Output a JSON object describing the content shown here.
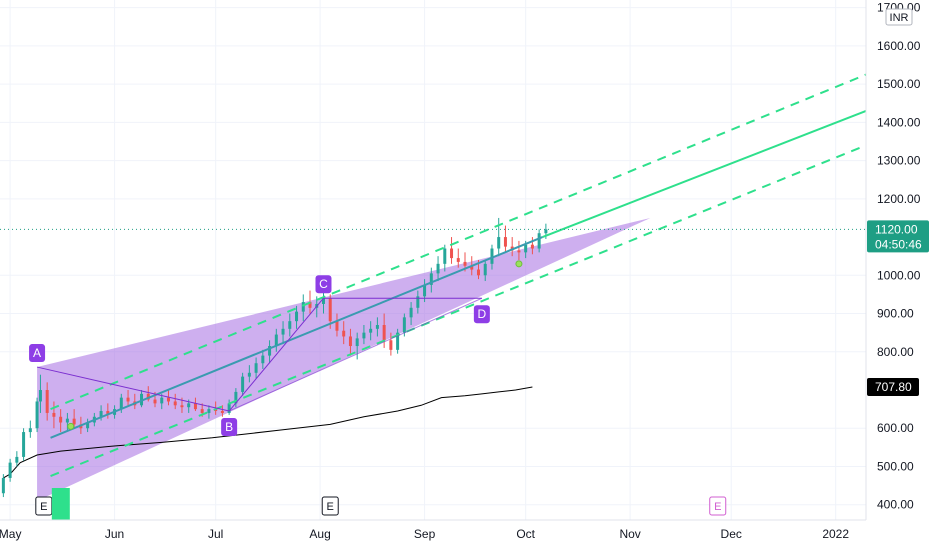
{
  "chart_data": {
    "type": "candlestick",
    "currency": "INR",
    "y_range": [
      360,
      1720
    ],
    "y_ticks": [
      "1700.00",
      "1600.00",
      "1500.00",
      "1400.00",
      "1300.00",
      "1200.00",
      "1000.00",
      "900.00",
      "800.00",
      "600.00",
      "500.00",
      "400.00"
    ],
    "x_months": [
      {
        "label": "May",
        "t": 0
      },
      {
        "label": "Jun",
        "t": 31
      },
      {
        "label": "Jul",
        "t": 61
      },
      {
        "label": "Aug",
        "t": 92
      },
      {
        "label": "Sep",
        "t": 123
      },
      {
        "label": "Oct",
        "t": 153
      },
      {
        "label": "Nov",
        "t": 184
      },
      {
        "label": "Dec",
        "t": 214
      },
      {
        "label": "2022",
        "t": 245
      }
    ],
    "t_range": [
      -3,
      254
    ],
    "last_price": {
      "value": 1120,
      "label": "1120.00",
      "countdown": "04:50:46"
    },
    "ma_price": {
      "value": 707.8,
      "label": "707.80"
    },
    "moving_average": [
      [
        -2,
        470
      ],
      [
        0,
        480
      ],
      [
        3,
        510
      ],
      [
        8,
        530
      ],
      [
        15,
        540
      ],
      [
        30,
        553
      ],
      [
        45,
        563
      ],
      [
        60,
        575
      ],
      [
        70,
        585
      ],
      [
        80,
        595
      ],
      [
        95,
        610
      ],
      [
        105,
        630
      ],
      [
        115,
        645
      ],
      [
        122,
        660
      ],
      [
        128,
        680
      ],
      [
        135,
        685
      ],
      [
        140,
        690
      ],
      [
        145,
        695
      ],
      [
        150,
        700
      ],
      [
        155,
        707.8
      ]
    ],
    "pattern_points": [
      {
        "label": "A",
        "t": 8,
        "price": 760
      },
      {
        "label": "B",
        "t": 65,
        "price": 645
      },
      {
        "label": "C",
        "t": 93,
        "price": 940
      },
      {
        "label": "D",
        "t": 140,
        "price": 940
      }
    ],
    "pattern_triangle": [
      [
        8,
        760
      ],
      [
        8,
        410
      ],
      [
        190,
        1150
      ]
    ],
    "trend_channel": {
      "mid": [
        [
          12,
          575
        ],
        [
          158,
          1100
        ]
      ],
      "mid_extension": [
        [
          158,
          1100
        ],
        [
          254,
          1430
        ]
      ],
      "upper": [
        [
          12,
          650
        ],
        [
          254,
          1525
        ]
      ],
      "lower": [
        [
          12,
          475
        ],
        [
          254,
          1340
        ]
      ]
    },
    "candles": [
      [
        -2,
        430,
        480,
        420,
        470
      ],
      [
        0,
        470,
        520,
        460,
        510
      ],
      [
        2,
        510,
        540,
        500,
        525
      ],
      [
        4,
        525,
        600,
        515,
        590
      ],
      [
        6,
        590,
        620,
        575,
        600
      ],
      [
        8,
        600,
        680,
        590,
        670
      ],
      [
        9,
        670,
        740,
        640,
        700
      ],
      [
        11,
        700,
        720,
        620,
        640
      ],
      [
        13,
        640,
        670,
        600,
        630
      ],
      [
        15,
        630,
        650,
        590,
        615
      ],
      [
        17,
        615,
        640,
        595,
        625
      ],
      [
        19,
        625,
        650,
        600,
        610
      ],
      [
        21,
        610,
        630,
        585,
        600
      ],
      [
        23,
        600,
        625,
        590,
        615
      ],
      [
        25,
        615,
        640,
        605,
        630
      ],
      [
        27,
        630,
        660,
        620,
        645
      ],
      [
        29,
        645,
        665,
        625,
        635
      ],
      [
        31,
        635,
        660,
        625,
        650
      ],
      [
        33,
        650,
        690,
        640,
        680
      ],
      [
        35,
        680,
        700,
        660,
        670
      ],
      [
        37,
        670,
        690,
        650,
        660
      ],
      [
        39,
        660,
        700,
        655,
        690
      ],
      [
        41,
        690,
        710,
        670,
        675
      ],
      [
        43,
        675,
        695,
        655,
        665
      ],
      [
        45,
        665,
        690,
        650,
        680
      ],
      [
        47,
        680,
        700,
        660,
        670
      ],
      [
        49,
        670,
        690,
        650,
        660
      ],
      [
        51,
        660,
        680,
        640,
        655
      ],
      [
        53,
        655,
        675,
        640,
        665
      ],
      [
        55,
        665,
        680,
        645,
        650
      ],
      [
        57,
        650,
        665,
        630,
        640
      ],
      [
        59,
        640,
        660,
        625,
        650
      ],
      [
        61,
        650,
        670,
        635,
        645
      ],
      [
        63,
        645,
        660,
        630,
        640
      ],
      [
        65,
        640,
        675,
        635,
        665
      ],
      [
        67,
        665,
        705,
        655,
        695
      ],
      [
        69,
        695,
        745,
        685,
        735
      ],
      [
        71,
        735,
        765,
        720,
        745
      ],
      [
        73,
        745,
        785,
        730,
        770
      ],
      [
        75,
        770,
        805,
        755,
        790
      ],
      [
        77,
        790,
        830,
        770,
        815
      ],
      [
        79,
        815,
        860,
        800,
        845
      ],
      [
        81,
        845,
        880,
        820,
        860
      ],
      [
        83,
        860,
        900,
        840,
        880
      ],
      [
        85,
        880,
        920,
        860,
        905
      ],
      [
        87,
        905,
        950,
        880,
        930
      ],
      [
        89,
        930,
        960,
        900,
        915
      ],
      [
        91,
        915,
        945,
        890,
        925
      ],
      [
        93,
        925,
        960,
        900,
        940
      ],
      [
        95,
        940,
        950,
        860,
        880
      ],
      [
        97,
        880,
        900,
        840,
        855
      ],
      [
        99,
        855,
        880,
        820,
        840
      ],
      [
        101,
        840,
        860,
        790,
        815
      ],
      [
        103,
        815,
        850,
        780,
        835
      ],
      [
        105,
        835,
        870,
        820,
        850
      ],
      [
        107,
        850,
        880,
        830,
        860
      ],
      [
        109,
        860,
        890,
        840,
        870
      ],
      [
        111,
        870,
        900,
        810,
        830
      ],
      [
        113,
        830,
        850,
        790,
        805
      ],
      [
        115,
        805,
        860,
        795,
        850
      ],
      [
        117,
        850,
        900,
        840,
        890
      ],
      [
        119,
        890,
        930,
        870,
        915
      ],
      [
        121,
        915,
        960,
        900,
        945
      ],
      [
        123,
        945,
        990,
        930,
        975
      ],
      [
        125,
        975,
        1020,
        955,
        1005
      ],
      [
        127,
        1005,
        1050,
        985,
        1030
      ],
      [
        129,
        1030,
        1080,
        1010,
        1070
      ],
      [
        131,
        1070,
        1100,
        1030,
        1045
      ],
      [
        133,
        1045,
        1070,
        1020,
        1035
      ],
      [
        135,
        1035,
        1060,
        1010,
        1025
      ],
      [
        137,
        1025,
        1050,
        1000,
        1015
      ],
      [
        139,
        1015,
        1040,
        990,
        1000
      ],
      [
        141,
        1000,
        1040,
        985,
        1030
      ],
      [
        143,
        1030,
        1080,
        1015,
        1070
      ],
      [
        145,
        1070,
        1150,
        1050,
        1100
      ],
      [
        147,
        1100,
        1130,
        1060,
        1075
      ],
      [
        149,
        1075,
        1100,
        1050,
        1065
      ],
      [
        151,
        1065,
        1090,
        1040,
        1060
      ],
      [
        153,
        1060,
        1090,
        1045,
        1080
      ],
      [
        155,
        1080,
        1100,
        1055,
        1070
      ],
      [
        157,
        1070,
        1120,
        1060,
        1110
      ],
      [
        159,
        1110,
        1135,
        1095,
        1120
      ]
    ],
    "events": [
      {
        "label": "E",
        "t": 10,
        "style": "dark"
      },
      {
        "label": "E",
        "t": 95,
        "style": "dark"
      },
      {
        "label": "E",
        "t": 210,
        "style": "magenta"
      }
    ],
    "dots": [
      [
        18,
        605
      ],
      [
        151,
        1030
      ]
    ],
    "colors": {
      "up": "#26a69a",
      "down": "#ef5350",
      "channel": "#2ee08c",
      "triangle": "#a56de2",
      "pattern_line": "#7b2fd0",
      "point_fill": "#8e3ee6",
      "ma": "#000000",
      "grid": "#f0f3fa",
      "last_label_bg": "#1e9e84"
    }
  }
}
